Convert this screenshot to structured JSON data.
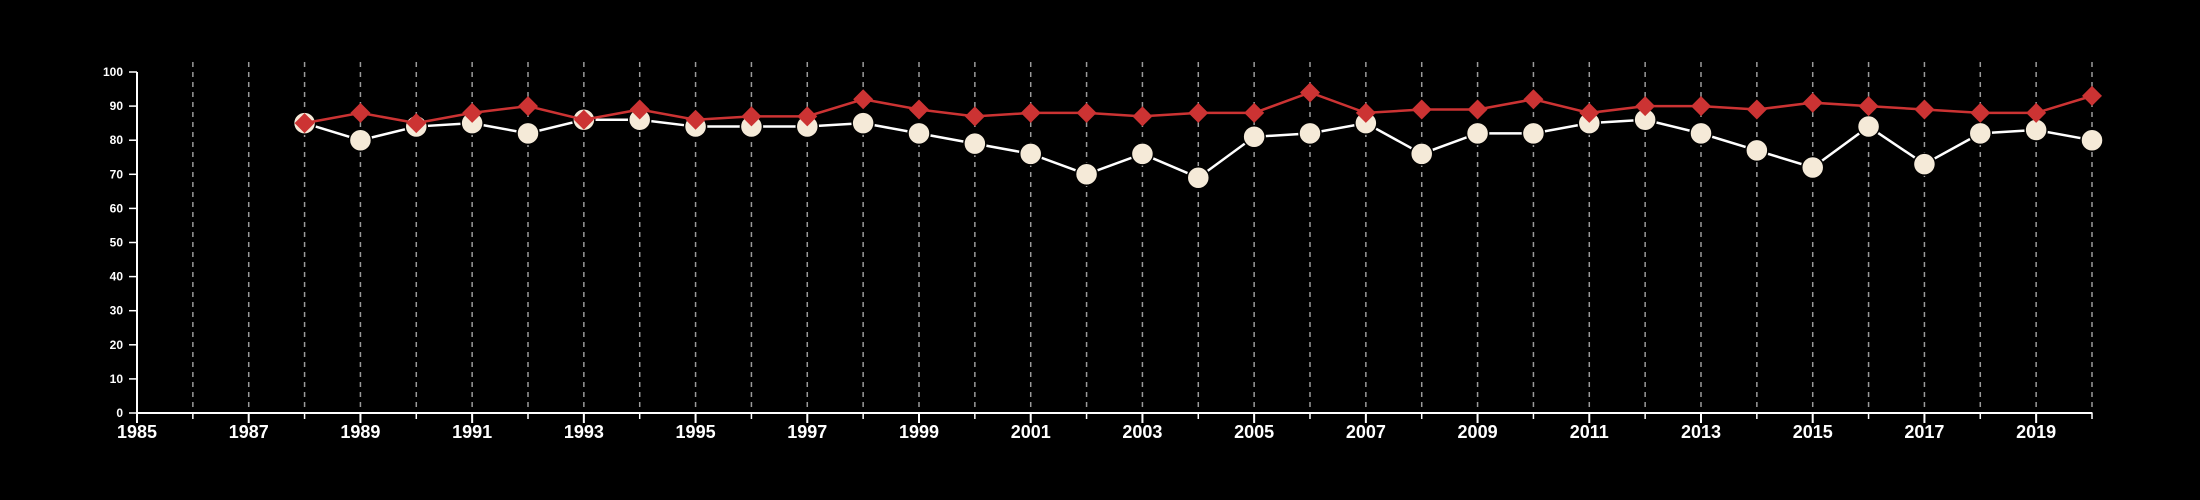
{
  "chart_data": {
    "type": "line",
    "title": "",
    "xlabel": "",
    "ylabel": "",
    "xlim": [
      1985,
      2020
    ],
    "ylim": [
      0,
      100
    ],
    "x_ticks": [
      1985,
      1987,
      1989,
      1991,
      1993,
      1995,
      1997,
      1999,
      2001,
      2003,
      2005,
      2007,
      2009,
      2011,
      2013,
      2015,
      2017,
      2019
    ],
    "y_ticks": [
      0,
      10,
      20,
      30,
      40,
      50,
      60,
      70,
      80,
      90,
      100
    ],
    "grid": "vertical dashed lines at every year",
    "x": [
      1988,
      1989,
      1990,
      1991,
      1992,
      1993,
      1994,
      1995,
      1996,
      1997,
      1998,
      1999,
      2000,
      2001,
      2002,
      2003,
      2004,
      2005,
      2006,
      2007,
      2008,
      2009,
      2010,
      2011,
      2012,
      2013,
      2014,
      2015,
      2016,
      2017,
      2018,
      2019,
      2020
    ],
    "series": [
      {
        "marker": "circle",
        "color": "#f5ead8",
        "line_color": "#ffffff",
        "values": [
          85,
          80,
          84,
          85,
          82,
          86,
          86,
          84,
          84,
          84,
          85,
          82,
          79,
          76,
          70,
          76,
          69,
          81,
          82,
          85,
          76,
          82,
          82,
          85,
          86,
          82,
          77,
          72,
          84,
          73,
          82,
          83,
          80
        ]
      },
      {
        "marker": "diamond",
        "color": "#cc3333",
        "line_color": "#cc3333",
        "values": [
          85,
          88,
          85,
          88,
          90,
          86,
          89,
          86,
          87,
          87,
          92,
          89,
          87,
          88,
          88,
          87,
          88,
          88,
          94,
          88,
          89,
          89,
          92,
          88,
          90,
          90,
          89,
          91,
          90,
          89,
          88,
          88,
          93
        ]
      }
    ]
  }
}
